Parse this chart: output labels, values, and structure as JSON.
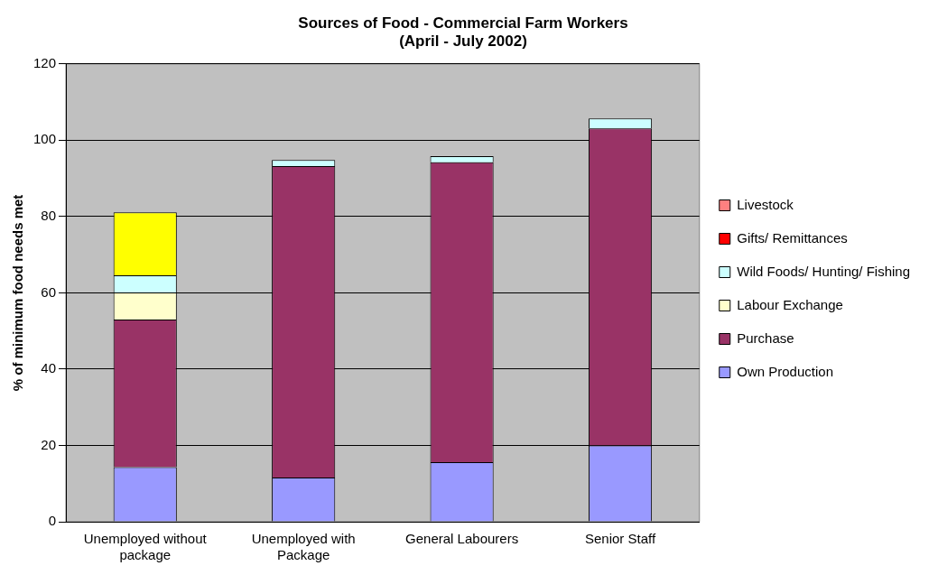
{
  "chart_data": {
    "type": "bar",
    "title": "Sources of Food - Commercial Farm Workers",
    "subtitle": "(April - July 2002)",
    "ylabel": "% of minimum food needs met",
    "categories": [
      "Unemployed without package",
      "Unemployed with Package",
      "General Labourers",
      "Senior Staff"
    ],
    "stacked": true,
    "ylim": [
      0,
      120
    ],
    "yticks": [
      0,
      20,
      40,
      60,
      80,
      100,
      120
    ],
    "grid": "y",
    "legend": "right",
    "series": [
      {
        "name": "Own Production",
        "color": "#9999ff",
        "values": [
          14.3,
          11.6,
          15.6,
          20.0
        ]
      },
      {
        "name": "Purchase",
        "color": "#993366",
        "values": [
          38.7,
          81.6,
          78.6,
          83.1
        ]
      },
      {
        "name": "Labour Exchange",
        "color": "#ffffcc",
        "values": [
          7.1,
          0,
          0,
          0
        ]
      },
      {
        "name": "Wild Foods/ Hunting/ Fishing",
        "color": "#ccffff",
        "values": [
          4.5,
          1.6,
          1.6,
          2.6
        ]
      },
      {
        "name": "Gifts/ Remittances",
        "color": "#ff0000",
        "values": [
          0,
          0,
          0,
          0
        ]
      },
      {
        "name": "Livestock",
        "color": "#ff8080",
        "values": [
          0,
          0,
          0,
          0
        ]
      },
      {
        "color": "#ffff00",
        "values": [
          16.5,
          0,
          0,
          0
        ]
      }
    ]
  }
}
